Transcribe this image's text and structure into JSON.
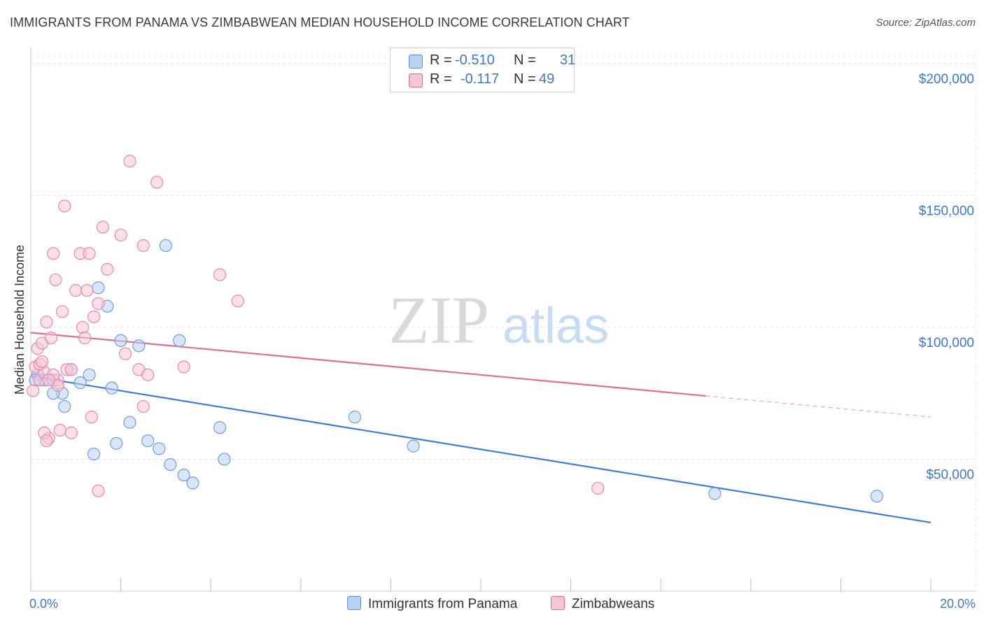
{
  "title": "IMMIGRANTS FROM PANAMA VS ZIMBABWEAN MEDIAN HOUSEHOLD INCOME CORRELATION CHART",
  "source": "Source: ZipAtlas.com",
  "watermark": {
    "zip": "ZIP",
    "atlas": "atlas"
  },
  "legend": {
    "r_label": "R =",
    "n_label": "N =",
    "series": [
      {
        "name": "Immigrants from Panama",
        "r": "-0.510",
        "n": "31",
        "color": "#5b8fd8",
        "fill": "#b9d1f3"
      },
      {
        "name": "Zimbabweans",
        "r": "-0.117",
        "n": "49",
        "color": "#e06a94",
        "fill": "#f7c6d5"
      }
    ]
  },
  "chart_data": {
    "type": "scatter",
    "title": "IMMIGRANTS FROM PANAMA VS ZIMBABWEAN MEDIAN HOUSEHOLD INCOME CORRELATION CHART",
    "xlabel": "",
    "ylabel": "Median Household Income",
    "xlim": [
      0,
      20
    ],
    "ylim": [
      0,
      205000
    ],
    "x_tick_labels": [
      "0.0%",
      "20.0%"
    ],
    "y_ticks": [
      50000,
      100000,
      150000,
      200000
    ],
    "y_tick_labels": [
      "$50,000",
      "$100,000",
      "$150,000",
      "$200,000"
    ],
    "series": [
      {
        "name": "Immigrants from Panama",
        "color": "#3f7bd6",
        "points": [
          [
            0.15,
            82000
          ],
          [
            0.3,
            80000
          ],
          [
            0.5,
            80000
          ],
          [
            0.7,
            75000
          ],
          [
            0.75,
            70000
          ],
          [
            0.9,
            84000
          ],
          [
            1.1,
            79000
          ],
          [
            1.3,
            82000
          ],
          [
            1.4,
            52000
          ],
          [
            1.5,
            115000
          ],
          [
            1.7,
            108000
          ],
          [
            1.8,
            77000
          ],
          [
            1.9,
            56000
          ],
          [
            2.0,
            95000
          ],
          [
            2.2,
            64000
          ],
          [
            2.4,
            93000
          ],
          [
            2.6,
            57000
          ],
          [
            2.85,
            54000
          ],
          [
            3.0,
            131000
          ],
          [
            3.1,
            48000
          ],
          [
            3.3,
            95000
          ],
          [
            3.4,
            44000
          ],
          [
            3.6,
            41000
          ],
          [
            4.2,
            62000
          ],
          [
            4.3,
            50000
          ],
          [
            7.2,
            66000
          ],
          [
            8.5,
            55000
          ],
          [
            15.2,
            37000
          ],
          [
            18.8,
            36000
          ],
          [
            0.5,
            75000
          ],
          [
            0.1,
            80000
          ]
        ],
        "trend": {
          "x0": 0,
          "y0": 81500,
          "x1": 20,
          "y1": 26000,
          "solid_to": 20
        }
      },
      {
        "name": "Zimbabweans",
        "color": "#e36b98",
        "points": [
          [
            0.05,
            76000
          ],
          [
            0.1,
            85000
          ],
          [
            0.15,
            92000
          ],
          [
            0.2,
            80000
          ],
          [
            0.25,
            94000
          ],
          [
            0.3,
            83000
          ],
          [
            0.35,
            102000
          ],
          [
            0.4,
            58000
          ],
          [
            0.45,
            96000
          ],
          [
            0.5,
            128000
          ],
          [
            0.55,
            118000
          ],
          [
            0.6,
            80000
          ],
          [
            0.65,
            61000
          ],
          [
            0.7,
            106000
          ],
          [
            0.75,
            146000
          ],
          [
            0.8,
            84000
          ],
          [
            0.9,
            60000
          ],
          [
            1.0,
            114000
          ],
          [
            1.1,
            128000
          ],
          [
            1.15,
            100000
          ],
          [
            1.2,
            96000
          ],
          [
            1.25,
            114000
          ],
          [
            1.3,
            128000
          ],
          [
            1.35,
            66000
          ],
          [
            1.4,
            104000
          ],
          [
            1.5,
            109000
          ],
          [
            1.6,
            138000
          ],
          [
            1.7,
            122000
          ],
          [
            1.5,
            38000
          ],
          [
            2.0,
            135000
          ],
          [
            2.1,
            90000
          ],
          [
            2.2,
            163000
          ],
          [
            2.4,
            84000
          ],
          [
            2.5,
            70000
          ],
          [
            2.5,
            131000
          ],
          [
            2.6,
            82000
          ],
          [
            2.8,
            155000
          ],
          [
            3.4,
            85000
          ],
          [
            4.2,
            120000
          ],
          [
            4.6,
            110000
          ],
          [
            12.6,
            39000
          ],
          [
            0.2,
            86000
          ],
          [
            0.25,
            87000
          ],
          [
            0.3,
            60000
          ],
          [
            0.5,
            82000
          ],
          [
            0.6,
            78000
          ],
          [
            0.9,
            84000
          ],
          [
            0.4,
            80000
          ],
          [
            0.35,
            57000
          ]
        ],
        "trend": {
          "x0": 0,
          "y0": 98000,
          "x1": 20,
          "y1": 66000,
          "solid_to": 15
        }
      }
    ]
  }
}
